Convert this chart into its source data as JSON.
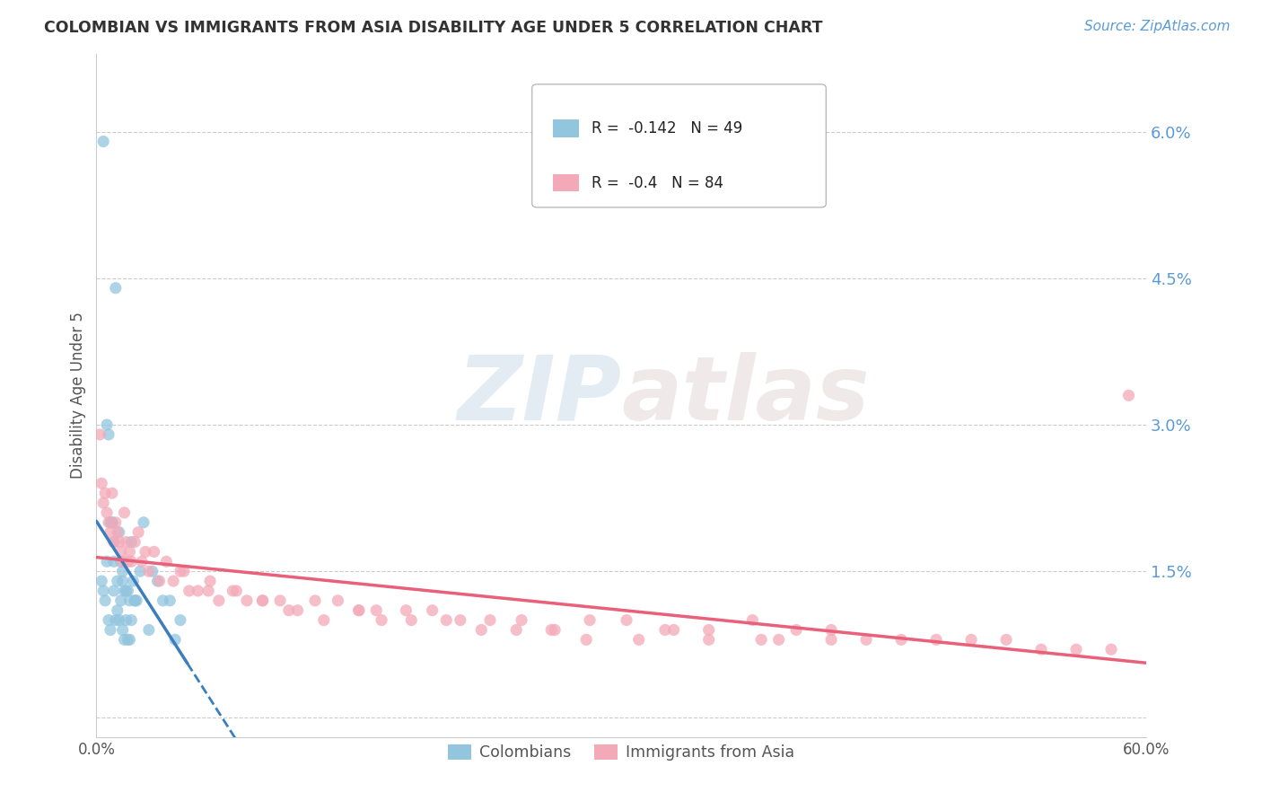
{
  "title": "COLOMBIAN VS IMMIGRANTS FROM ASIA DISABILITY AGE UNDER 5 CORRELATION CHART",
  "source": "Source: ZipAtlas.com",
  "ylabel": "Disability Age Under 5",
  "xmin": 0.0,
  "xmax": 0.6,
  "ymin": -0.002,
  "ymax": 0.068,
  "yticks": [
    0.0,
    0.015,
    0.03,
    0.045,
    0.06
  ],
  "ytick_labels": [
    "",
    "1.5%",
    "3.0%",
    "4.5%",
    "6.0%"
  ],
  "xticks": [
    0.0,
    0.1,
    0.2,
    0.3,
    0.4,
    0.5,
    0.6
  ],
  "xtick_labels": [
    "0.0%",
    "",
    "",
    "",
    "",
    "",
    "60.0%"
  ],
  "colombians_color": "#92c5de",
  "asia_color": "#f4a9b8",
  "colombians_line_color": "#3a7ebf",
  "asia_line_color": "#e8607a",
  "colombians_R": -0.142,
  "colombians_N": 49,
  "asia_R": -0.4,
  "asia_N": 84,
  "legend_label_colombians": "Colombians",
  "legend_label_asia": "Immigrants from Asia",
  "watermark_zip": "ZIP",
  "watermark_atlas": "atlas",
  "colombians_x": [
    0.004,
    0.006,
    0.007,
    0.008,
    0.009,
    0.01,
    0.01,
    0.011,
    0.012,
    0.013,
    0.014,
    0.015,
    0.015,
    0.016,
    0.017,
    0.018,
    0.019,
    0.02,
    0.021,
    0.022,
    0.023,
    0.025,
    0.027,
    0.03,
    0.032,
    0.035,
    0.038,
    0.042,
    0.045,
    0.048,
    0.003,
    0.004,
    0.005,
    0.006,
    0.007,
    0.008,
    0.009,
    0.01,
    0.011,
    0.012,
    0.013,
    0.014,
    0.015,
    0.016,
    0.017,
    0.018,
    0.019,
    0.02,
    0.022
  ],
  "colombians_y": [
    0.059,
    0.03,
    0.029,
    0.02,
    0.02,
    0.018,
    0.016,
    0.044,
    0.014,
    0.019,
    0.016,
    0.015,
    0.014,
    0.013,
    0.013,
    0.013,
    0.012,
    0.018,
    0.014,
    0.012,
    0.012,
    0.015,
    0.02,
    0.009,
    0.015,
    0.014,
    0.012,
    0.012,
    0.008,
    0.01,
    0.014,
    0.013,
    0.012,
    0.016,
    0.01,
    0.009,
    0.02,
    0.013,
    0.01,
    0.011,
    0.01,
    0.012,
    0.009,
    0.008,
    0.01,
    0.008,
    0.008,
    0.01,
    0.012
  ],
  "asia_x": [
    0.002,
    0.003,
    0.004,
    0.005,
    0.006,
    0.007,
    0.008,
    0.009,
    0.01,
    0.011,
    0.012,
    0.013,
    0.014,
    0.015,
    0.016,
    0.017,
    0.018,
    0.019,
    0.02,
    0.022,
    0.024,
    0.026,
    0.028,
    0.03,
    0.033,
    0.036,
    0.04,
    0.044,
    0.048,
    0.053,
    0.058,
    0.064,
    0.07,
    0.078,
    0.086,
    0.095,
    0.105,
    0.115,
    0.125,
    0.138,
    0.15,
    0.163,
    0.177,
    0.192,
    0.208,
    0.225,
    0.243,
    0.262,
    0.282,
    0.303,
    0.325,
    0.35,
    0.375,
    0.4,
    0.39,
    0.31,
    0.33,
    0.35,
    0.26,
    0.28,
    0.18,
    0.16,
    0.2,
    0.22,
    0.24,
    0.42,
    0.44,
    0.46,
    0.48,
    0.5,
    0.52,
    0.54,
    0.56,
    0.58,
    0.59,
    0.42,
    0.38,
    0.05,
    0.065,
    0.08,
    0.095,
    0.11,
    0.13,
    0.15
  ],
  "asia_y": [
    0.029,
    0.024,
    0.022,
    0.023,
    0.021,
    0.02,
    0.019,
    0.023,
    0.018,
    0.02,
    0.019,
    0.018,
    0.017,
    0.016,
    0.021,
    0.018,
    0.016,
    0.017,
    0.016,
    0.018,
    0.019,
    0.016,
    0.017,
    0.015,
    0.017,
    0.014,
    0.016,
    0.014,
    0.015,
    0.013,
    0.013,
    0.013,
    0.012,
    0.013,
    0.012,
    0.012,
    0.012,
    0.011,
    0.012,
    0.012,
    0.011,
    0.01,
    0.011,
    0.011,
    0.01,
    0.01,
    0.01,
    0.009,
    0.01,
    0.01,
    0.009,
    0.009,
    0.01,
    0.009,
    0.008,
    0.008,
    0.009,
    0.008,
    0.009,
    0.008,
    0.01,
    0.011,
    0.01,
    0.009,
    0.009,
    0.008,
    0.008,
    0.008,
    0.008,
    0.008,
    0.008,
    0.007,
    0.007,
    0.007,
    0.033,
    0.009,
    0.008,
    0.015,
    0.014,
    0.013,
    0.012,
    0.011,
    0.01,
    0.011
  ]
}
